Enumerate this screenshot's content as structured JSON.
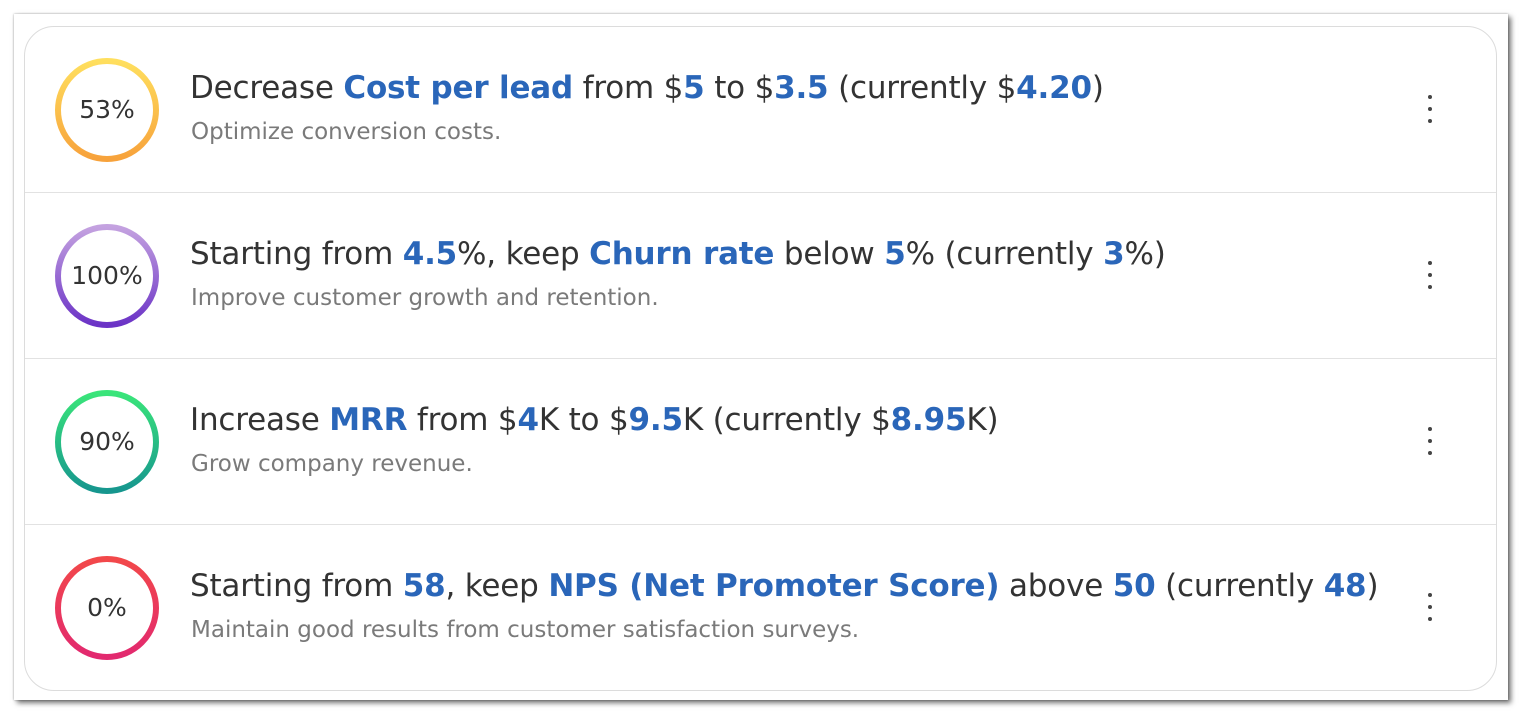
{
  "goals": [
    {
      "percent": "53%",
      "progress": 0.53,
      "gradient": [
        "#ffdf5e",
        "#f7a23b"
      ],
      "title": [
        {
          "t": "Decrease "
        },
        {
          "t": "Cost per lead",
          "hl": true
        },
        {
          "t": " from $"
        },
        {
          "t": "5",
          "hl": true
        },
        {
          "t": " to $"
        },
        {
          "t": "3.5",
          "hl": true
        },
        {
          "t": " (currently $"
        },
        {
          "t": "4.20",
          "hl": true
        },
        {
          "t": ")"
        }
      ],
      "description": "Optimize conversion costs."
    },
    {
      "percent": "100%",
      "progress": 1.0,
      "gradient": [
        "#c4a2e0",
        "#6b33c6"
      ],
      "title": [
        {
          "t": "Starting from "
        },
        {
          "t": "4.5",
          "hl": true
        },
        {
          "t": "%, keep "
        },
        {
          "t": "Churn rate",
          "hl": true
        },
        {
          "t": " below "
        },
        {
          "t": "5",
          "hl": true
        },
        {
          "t": "% (currently "
        },
        {
          "t": "3",
          "hl": true
        },
        {
          "t": "%)"
        }
      ],
      "description": "Improve customer growth and retention."
    },
    {
      "percent": "90%",
      "progress": 0.9,
      "gradient": [
        "#3ae57a",
        "#16968e"
      ],
      "title": [
        {
          "t": "Increase "
        },
        {
          "t": "MRR",
          "hl": true
        },
        {
          "t": " from $"
        },
        {
          "t": "4",
          "hl": true
        },
        {
          "t": "K to $"
        },
        {
          "t": "9.5",
          "hl": true
        },
        {
          "t": "K (currently $"
        },
        {
          "t": "8.95",
          "hl": true
        },
        {
          "t": "K)"
        }
      ],
      "description": "Grow company revenue."
    },
    {
      "percent": "0%",
      "progress": 0.0,
      "gradient": [
        "#f2484a",
        "#e2296f"
      ],
      "title": [
        {
          "t": "Starting from "
        },
        {
          "t": "58",
          "hl": true
        },
        {
          "t": ", keep "
        },
        {
          "t": "NPS (Net Promoter Score)",
          "hl": true
        },
        {
          "t": " above "
        },
        {
          "t": "50",
          "hl": true
        },
        {
          "t": " (currently "
        },
        {
          "t": "48",
          "hl": true
        },
        {
          "t": ")"
        }
      ],
      "description": "Maintain good results from customer satisfaction surveys."
    }
  ],
  "menu_icon": "kebab-menu-icon"
}
